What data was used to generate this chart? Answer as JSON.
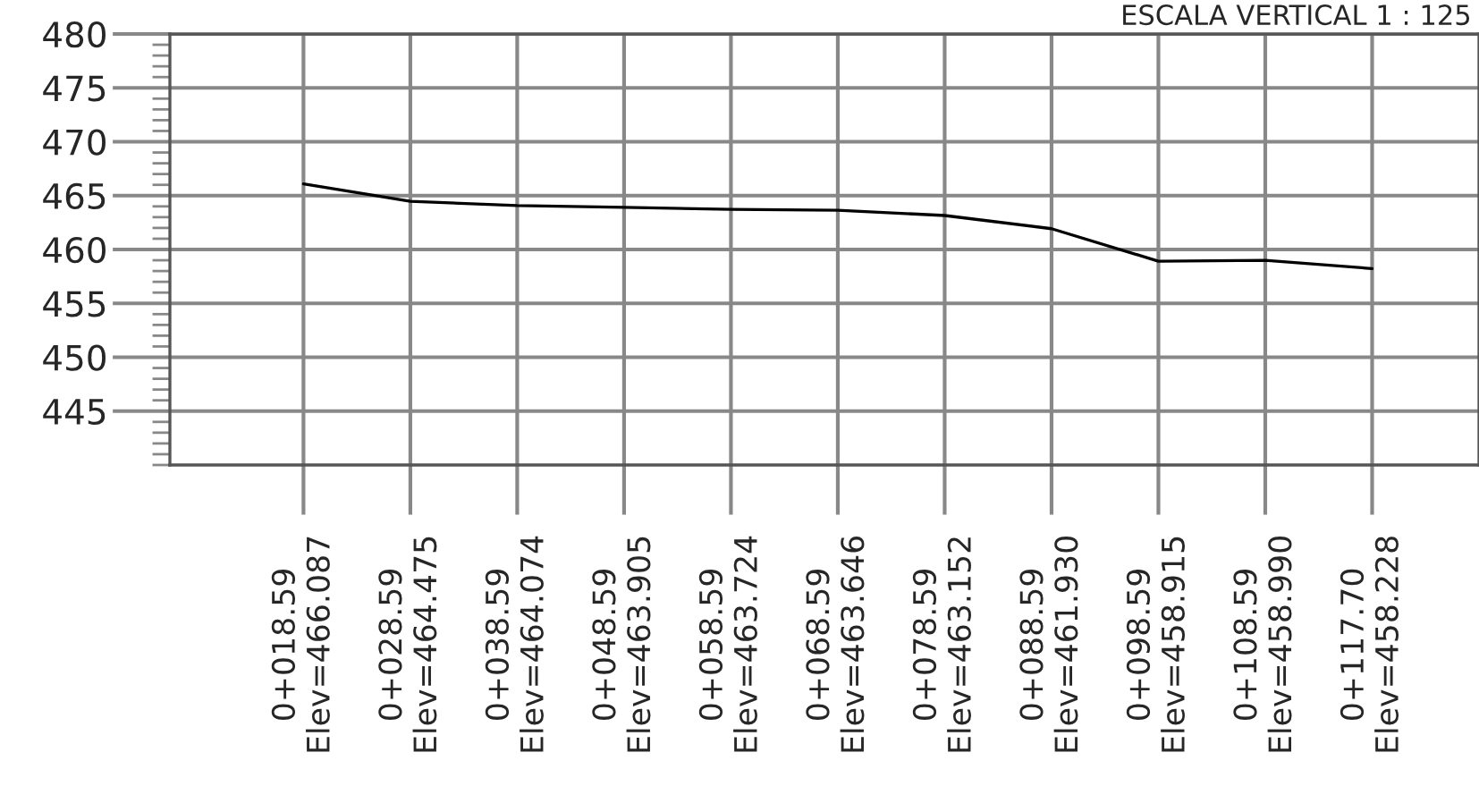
{
  "chart_data": {
    "type": "line",
    "categories": [
      "0+018.59\nElev=466.087",
      "0+028.59\nElev=464.475",
      "0+038.59\nElev=464.074",
      "0+048.59\nElev=463.905",
      "0+058.59\nElev=463.724",
      "0+068.59\nElev=463.646",
      "0+078.59\nElev=463.152",
      "0+088.59\nElev=461.930",
      "0+098.59\nElev=458.915",
      "0+108.59\nElev=458.990",
      "0+117.70\nElev=458.228"
    ],
    "series": [
      {
        "color": "#000000",
        "values": [
          466.087,
          464.475,
          464.074,
          463.905,
          463.724,
          463.646,
          463.152,
          461.93,
          458.915,
          458.99,
          458.228
        ]
      }
    ],
    "ylim": [
      440,
      480
    ],
    "yticks": [
      445,
      450,
      455,
      460,
      465,
      470,
      475,
      480
    ],
    "grid": true,
    "marker": "none",
    "line_style": "solid",
    "annotations": [
      "ESCALA VERTICAL 1 : 125"
    ]
  }
}
